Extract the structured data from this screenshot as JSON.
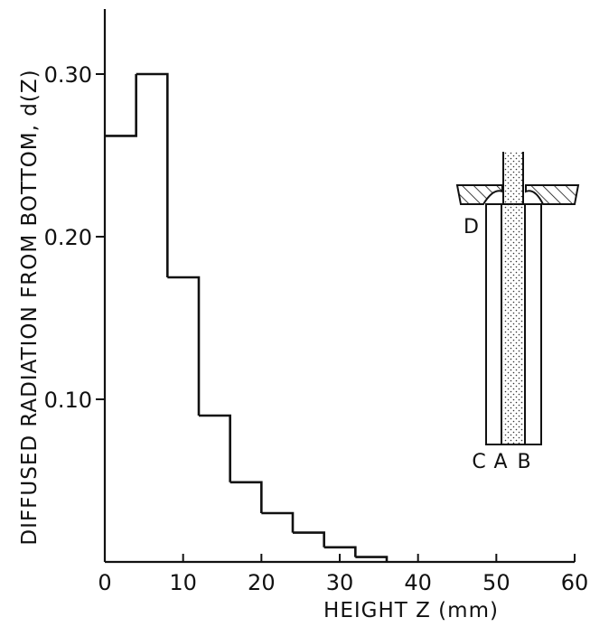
{
  "chart_data": {
    "type": "step",
    "xlabel": "HEIGHT Z (mm)",
    "ylabel": "DIFFUSED RADIATION FROM BOTTOM, d(Z)",
    "xlim": [
      0,
      60
    ],
    "ylim": [
      0,
      0.34
    ],
    "x_ticks": [
      "0",
      "10",
      "20",
      "30",
      "40",
      "50",
      "60"
    ],
    "y_ticks": [
      "0.10",
      "0.20",
      "0.30"
    ],
    "grid": false,
    "bins": [
      {
        "x0": 0,
        "x1": 4,
        "value": 0.262
      },
      {
        "x0": 4,
        "x1": 8,
        "value": 0.3
      },
      {
        "x0": 8,
        "x1": 12,
        "value": 0.175
      },
      {
        "x0": 12,
        "x1": 16,
        "value": 0.09
      },
      {
        "x0": 16,
        "x1": 20,
        "value": 0.049
      },
      {
        "x0": 20,
        "x1": 24,
        "value": 0.03
      },
      {
        "x0": 24,
        "x1": 28,
        "value": 0.018
      },
      {
        "x0": 28,
        "x1": 32,
        "value": 0.009
      },
      {
        "x0": 32,
        "x1": 36,
        "value": 0.003
      }
    ],
    "inset": {
      "labels": {
        "c": "C",
        "a": "A",
        "b": "B",
        "d": "D"
      }
    }
  }
}
